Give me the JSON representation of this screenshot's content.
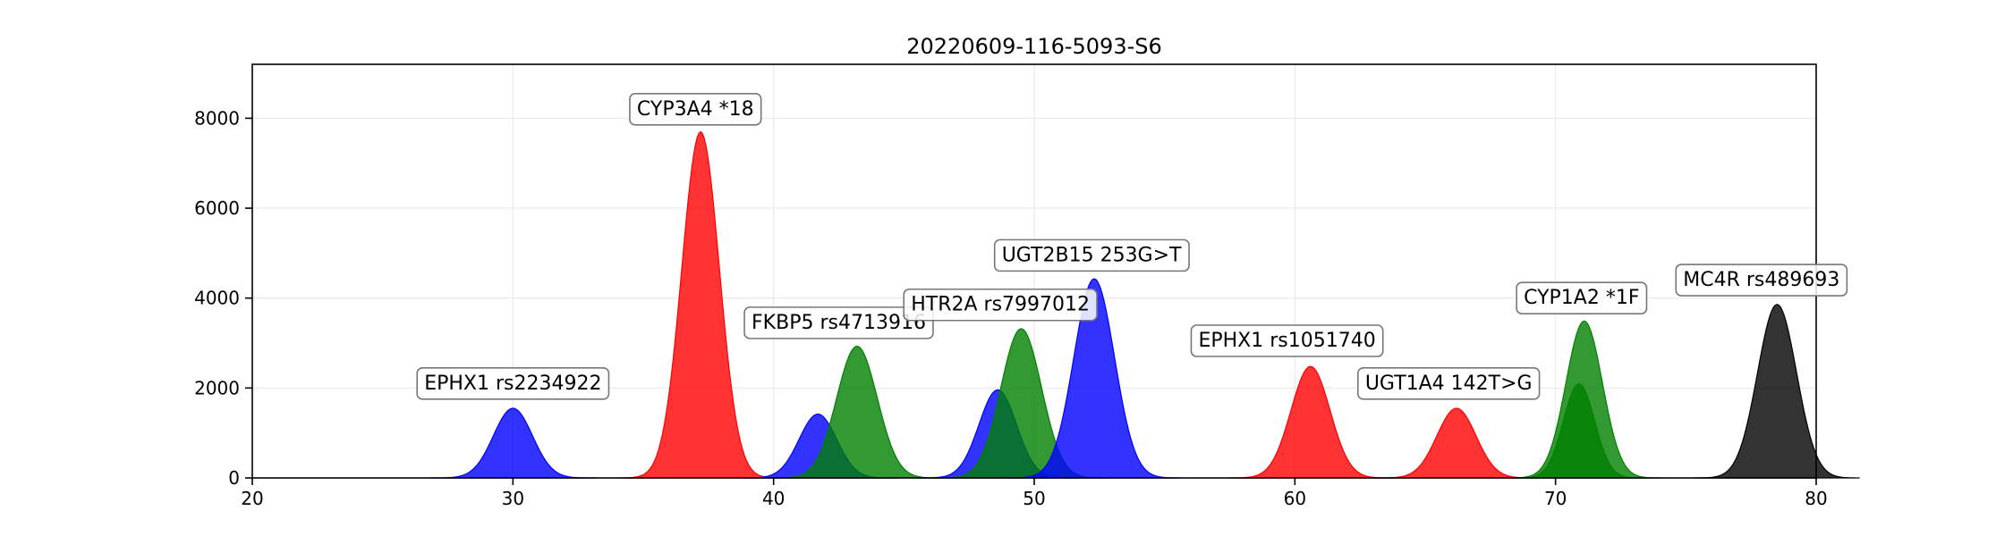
{
  "chart_data": {
    "type": "area",
    "title": "20220609-116-5093-S6",
    "xlabel": "",
    "ylabel": "",
    "xlim": [
      20,
      80
    ],
    "ylim": [
      0,
      9200
    ],
    "x_ticks": [
      20,
      30,
      40,
      50,
      60,
      70,
      80
    ],
    "y_ticks": [
      0,
      2000,
      4000,
      6000,
      8000
    ],
    "grid": true,
    "colors": {
      "blue": "#0000ff",
      "red": "#ff0000",
      "green": "#008000",
      "black": "#000000"
    },
    "peaks": [
      {
        "center": 30.0,
        "height": 1550,
        "sigma": 0.75,
        "color": "blue"
      },
      {
        "center": 37.2,
        "height": 7700,
        "sigma": 0.72,
        "color": "red"
      },
      {
        "center": 41.7,
        "height": 1420,
        "sigma": 0.72,
        "color": "blue"
      },
      {
        "center": 43.2,
        "height": 2930,
        "sigma": 0.78,
        "color": "green"
      },
      {
        "center": 48.6,
        "height": 1960,
        "sigma": 0.72,
        "color": "blue"
      },
      {
        "center": 49.5,
        "height": 3320,
        "sigma": 0.78,
        "color": "green"
      },
      {
        "center": 52.3,
        "height": 4430,
        "sigma": 0.78,
        "color": "blue"
      },
      {
        "center": 60.6,
        "height": 2480,
        "sigma": 0.75,
        "color": "red"
      },
      {
        "center": 66.2,
        "height": 1550,
        "sigma": 0.75,
        "color": "red"
      },
      {
        "center": 70.9,
        "height": 2090,
        "sigma": 0.6,
        "color": "green"
      },
      {
        "center": 71.1,
        "height": 3490,
        "sigma": 0.7,
        "color": "green"
      },
      {
        "center": 78.5,
        "height": 3860,
        "sigma": 0.75,
        "color": "black"
      }
    ],
    "annotations": [
      {
        "text": "EPHX1 rs2234922",
        "x": 30.0,
        "y": 2100
      },
      {
        "text": "CYP3A4 *18",
        "x": 37.0,
        "y": 8200
      },
      {
        "text": "FKBP5 rs4713916",
        "x": 42.5,
        "y": 3450
      },
      {
        "text": "HTR2A rs7997012",
        "x": 48.7,
        "y": 3850
      },
      {
        "text": "UGT2B15 253G>T",
        "x": 52.2,
        "y": 4950
      },
      {
        "text": "EPHX1 rs1051740",
        "x": 59.7,
        "y": 3050
      },
      {
        "text": "UGT1A4 142T>G",
        "x": 65.9,
        "y": 2100
      },
      {
        "text": "CYP1A2 *1F",
        "x": 71.0,
        "y": 4000
      },
      {
        "text": "MC4R rs489693",
        "x": 77.9,
        "y": 4400
      }
    ]
  }
}
